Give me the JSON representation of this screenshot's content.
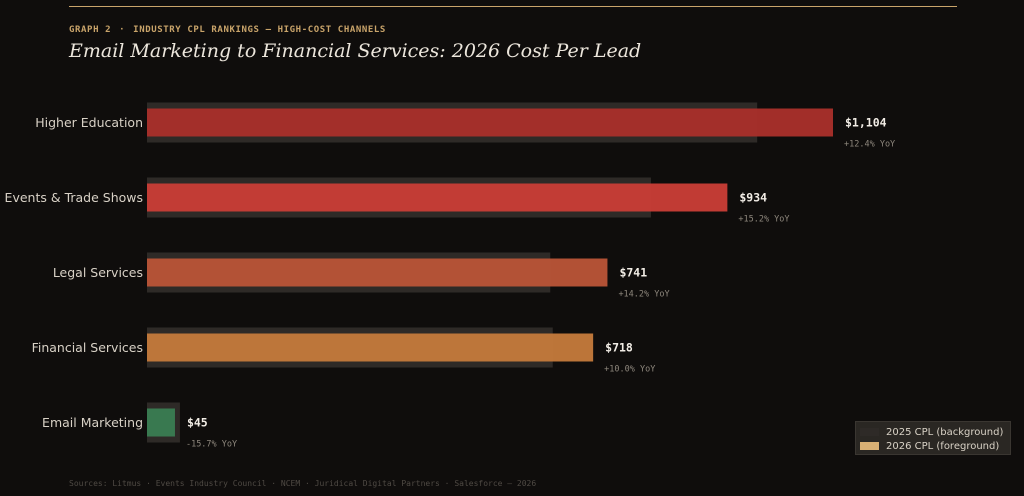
{
  "header": {
    "kicker_graph": "GRAPH 2",
    "kicker_separator": "·",
    "kicker_topic": "INDUSTRY CPL RANKINGS — HIGH-COST CHANNELS",
    "title": "Email Marketing to Financial Services: 2026 Cost Per Lead"
  },
  "chart_data": {
    "type": "bar",
    "orientation": "horizontal",
    "categories": [
      "Higher Education",
      "Events & Trade Shows",
      "Legal Services",
      "Financial Services",
      "Email Marketing"
    ],
    "series": [
      {
        "name": "2025 CPL (background)",
        "values": [
          982,
          811,
          649,
          653,
          53
        ]
      },
      {
        "name": "2026 CPL (foreground)",
        "values": [
          1104,
          934,
          741,
          718,
          45
        ]
      }
    ],
    "value_labels": [
      "$1,104",
      "$934",
      "$741",
      "$718",
      "$45"
    ],
    "yoy_labels": [
      "+12.4% YoY",
      "+15.2% YoY",
      "+14.2% YoY",
      "+10.0% YoY",
      "-15.7% YoY"
    ],
    "bar_colors": [
      "#a9302b",
      "#c93d36",
      "#b95437",
      "#c47a3b",
      "#3a7d52"
    ],
    "background_color": "#2e2a27",
    "xlim": [
      0,
      1104
    ],
    "legend_position": "bottom-right",
    "grid": false
  },
  "legend": {
    "items": [
      {
        "label": "2025 CPL (background)",
        "color": "#2e2a27"
      },
      {
        "label": "2026 CPL (foreground)",
        "color": "#d9b074"
      }
    ]
  },
  "sources": "Sources: Litmus · Events Industry Council · NCEM · Juridical Digital Partners · Salesforce — 2026"
}
